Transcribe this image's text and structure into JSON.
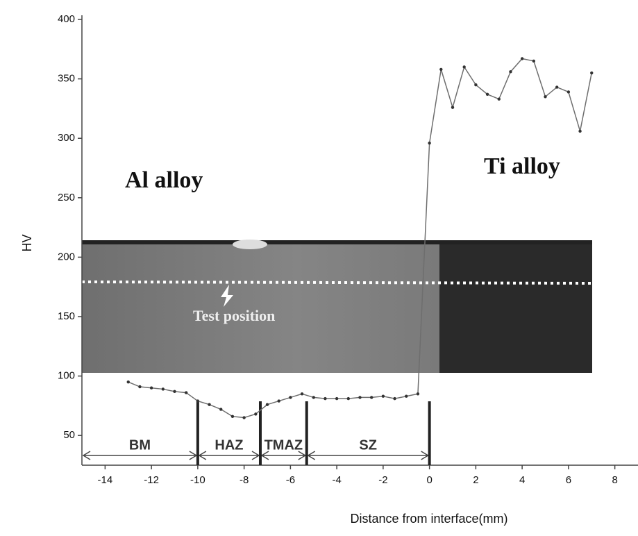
{
  "chart_data": {
    "type": "line",
    "x_label": "Distance from interface(mm)",
    "y_label": "HV",
    "annotations": [
      "Al alloy",
      "Ti alloy",
      "Test position"
    ],
    "xlim": [
      -15,
      9
    ],
    "xticks": [
      -14,
      -12,
      -10,
      -8,
      -6,
      -4,
      -2,
      0,
      2,
      4,
      6,
      8
    ],
    "ylim": [
      25,
      400
    ],
    "yticks": [
      50,
      100,
      150,
      200,
      250,
      300,
      350,
      400
    ],
    "zone_labels": [
      "BM",
      "HAZ",
      "TMAZ",
      "SZ"
    ],
    "zone_boundaries": [
      -10,
      -7.3,
      -5.3,
      0
    ],
    "series": [
      {
        "color": "#6e6e6e",
        "x": [
          -13,
          -12.5,
          -12,
          -11.5,
          -11,
          -10.5,
          -10,
          -9.5,
          -9,
          -8.5,
          -8,
          -7.5,
          -7,
          -6.5,
          -6,
          -5.5,
          -5,
          -4.5,
          -4,
          -3.5,
          -3,
          -2.5,
          -2,
          -1.5,
          -1,
          -0.5,
          0,
          0.5,
          1,
          1.5,
          2,
          2.5,
          3,
          3.5,
          4,
          4.5,
          5,
          5.5,
          6,
          6.5,
          7
        ],
        "values": [
          95,
          91,
          90,
          89,
          87,
          86,
          79,
          76,
          72,
          66,
          65,
          68,
          76,
          79,
          82,
          85,
          82,
          81,
          81,
          81,
          82,
          82,
          83,
          81,
          83,
          85,
          296,
          358,
          326,
          360,
          345,
          337,
          333,
          356,
          367,
          365,
          335,
          343,
          339,
          306,
          355
        ]
      }
    ]
  }
}
